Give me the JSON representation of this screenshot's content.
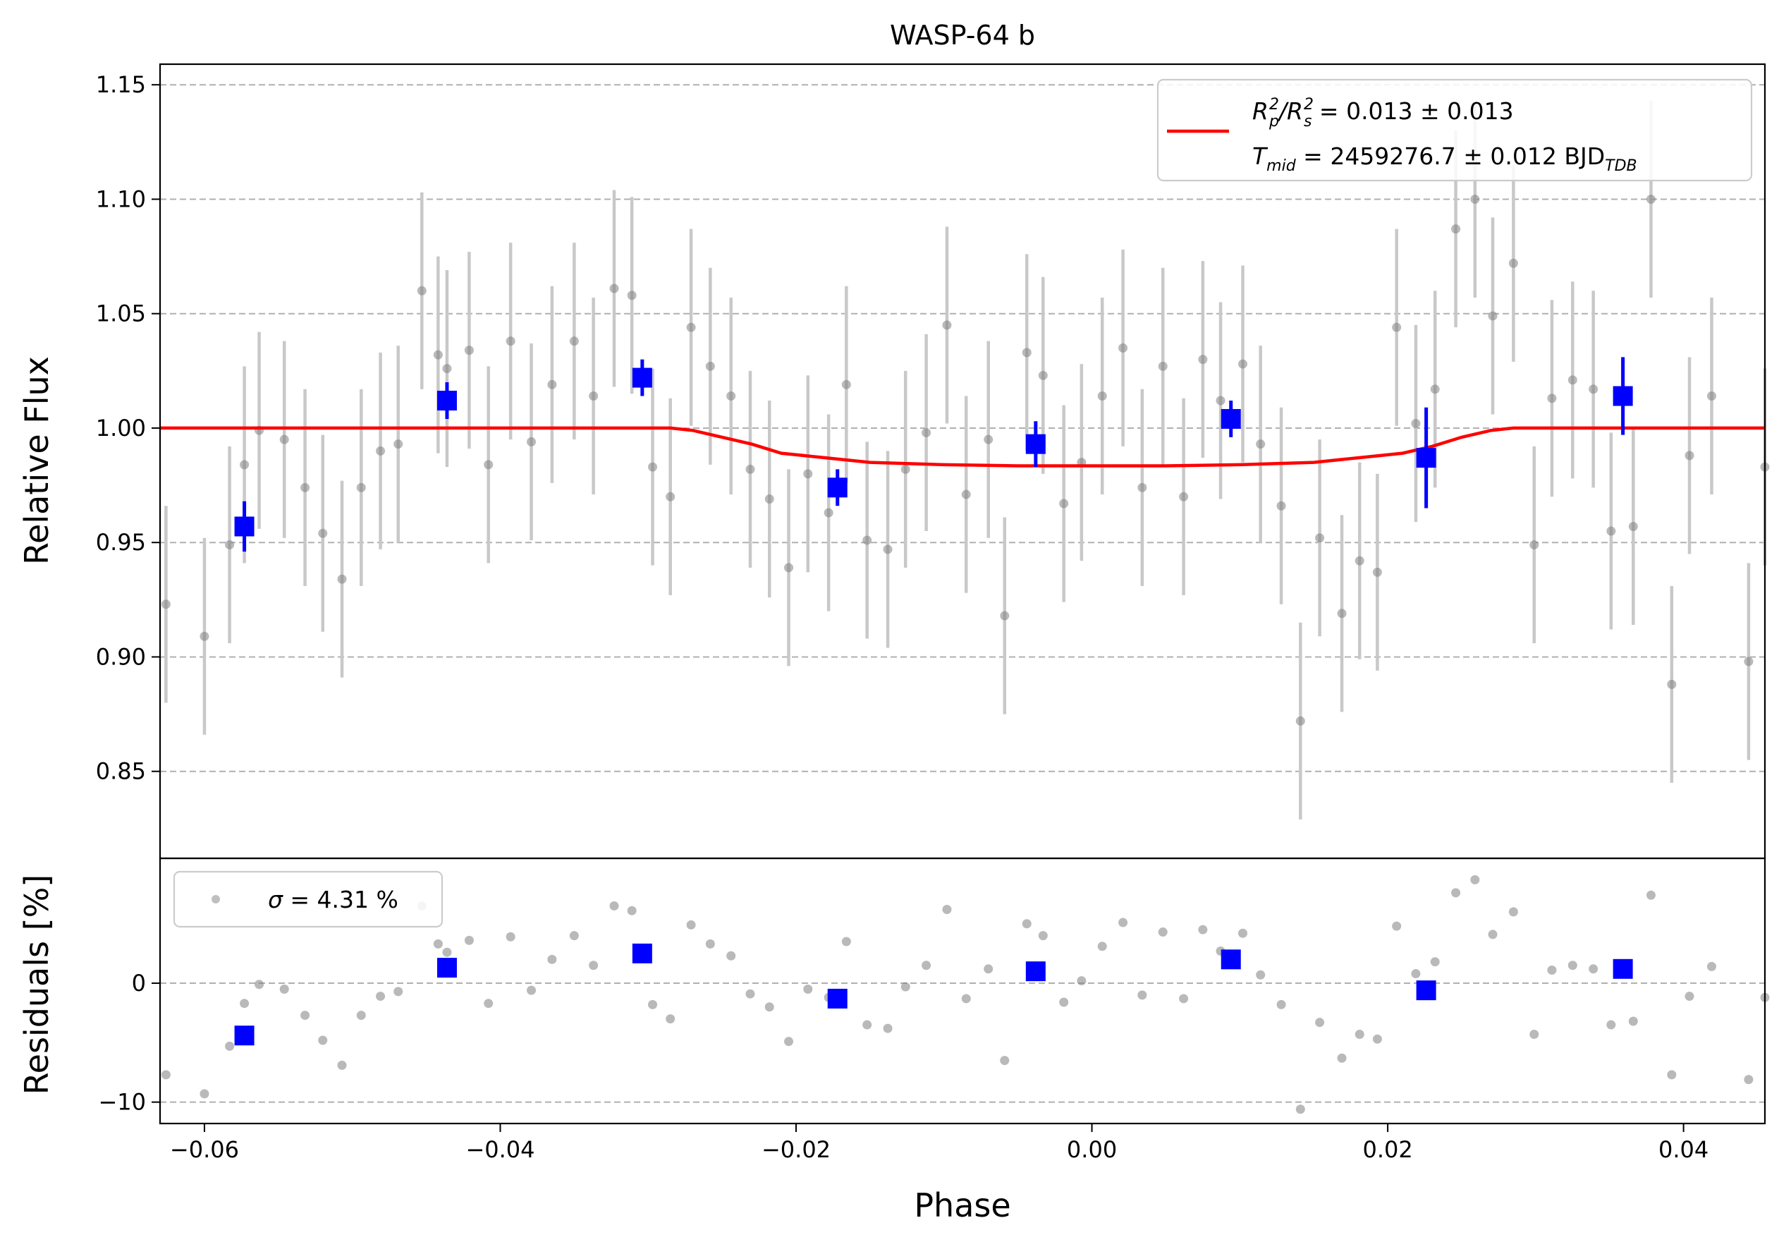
{
  "chart_data": [
    {
      "panel": "light-curve",
      "type": "scatter",
      "title": "WASP-64 b",
      "xlabel": "",
      "ylabel": "Relative Flux",
      "xlim": [
        -0.063,
        0.0455
      ],
      "ylim": [
        0.812,
        1.159
      ],
      "y_ticks": [
        0.85,
        0.9,
        0.95,
        1.0,
        1.05,
        1.1,
        1.15
      ],
      "y_tick_labels": [
        "0.85",
        "0.90",
        "0.95",
        "1.00",
        "1.05",
        "1.10",
        "1.15"
      ],
      "grid": "horizontal dashed",
      "legend_position": "upper right",
      "legend": {
        "rp_prefix": "R",
        "rp_sub": "p",
        "rp_sup": "2",
        "rs_prefix": "/R",
        "rs_sub": "s",
        "rs_sup": "2",
        "rp_value": " = 0.013 ± 0.013",
        "tmid_prefix": "T",
        "tmid_sub": "mid",
        "tmid_value": " = 2459276.7 ± 0.012 BJD",
        "tmid_unit_sub": "TDB"
      },
      "colors": {
        "raw": "#808080",
        "raw_err": "#c8c8c8",
        "binned": "#0000ff",
        "model": "#ff0000",
        "grid": "#b0b0b0"
      },
      "series": [
        {
          "name": "raw",
          "x": [
            -0.0626,
            -0.06,
            -0.0583,
            -0.0573,
            -0.0563,
            -0.0546,
            -0.0532,
            -0.052,
            -0.0507,
            -0.0494,
            -0.0481,
            -0.0469,
            -0.0453,
            -0.0442,
            -0.0436,
            -0.0421,
            -0.0408,
            -0.0393,
            -0.0379,
            -0.0365,
            -0.035,
            -0.0337,
            -0.0323,
            -0.0311,
            -0.0297,
            -0.0285,
            -0.0271,
            -0.0258,
            -0.0244,
            -0.0231,
            -0.0218,
            -0.0205,
            -0.0192,
            -0.0178,
            -0.0166,
            -0.0152,
            -0.0138,
            -0.0126,
            -0.0112,
            -0.0098,
            -0.0085,
            -0.007,
            -0.0059,
            -0.0044,
            -0.0033,
            -0.0019,
            -0.0007,
            0.0007,
            0.0021,
            0.0034,
            0.0048,
            0.0062,
            0.0075,
            0.0087,
            0.0102,
            0.0114,
            0.0128,
            0.0141,
            0.0154,
            0.0169,
            0.0181,
            0.0193,
            0.0206,
            0.0219,
            0.0232,
            0.0246,
            0.0259,
            0.0271,
            0.0285,
            0.0299,
            0.0311,
            0.0325,
            0.0339,
            0.0351,
            0.0366,
            0.0378,
            0.0392,
            0.0404,
            0.0419,
            0.0444,
            0.0455
          ],
          "y": [
            0.923,
            0.909,
            0.949,
            0.984,
            0.999,
            0.995,
            0.974,
            0.954,
            0.934,
            0.974,
            0.99,
            0.993,
            1.06,
            1.032,
            1.026,
            1.034,
            0.984,
            1.038,
            0.994,
            1.019,
            1.038,
            1.014,
            1.061,
            1.058,
            0.983,
            0.97,
            1.044,
            1.027,
            1.014,
            0.982,
            0.969,
            0.939,
            0.98,
            0.963,
            1.019,
            0.951,
            0.947,
            0.982,
            0.998,
            1.045,
            0.971,
            0.995,
            0.918,
            1.033,
            1.023,
            0.967,
            0.985,
            1.014,
            1.035,
            0.974,
            1.027,
            0.97,
            1.03,
            1.012,
            1.028,
            0.993,
            0.966,
            0.872,
            0.952,
            0.919,
            0.942,
            0.937,
            1.044,
            1.002,
            1.017,
            1.087,
            1.1,
            1.049,
            1.072,
            0.949,
            1.013,
            1.021,
            1.017,
            0.955,
            0.957,
            1.1,
            0.888,
            0.988,
            1.014,
            0.898,
            0.983
          ],
          "err": [
            0.043,
            0.043,
            0.043,
            0.043,
            0.043,
            0.043,
            0.043,
            0.043,
            0.043,
            0.043,
            0.043,
            0.043,
            0.043,
            0.043,
            0.043,
            0.043,
            0.043,
            0.043,
            0.043,
            0.043,
            0.043,
            0.043,
            0.043,
            0.043,
            0.043,
            0.043,
            0.043,
            0.043,
            0.043,
            0.043,
            0.043,
            0.043,
            0.043,
            0.043,
            0.043,
            0.043,
            0.043,
            0.043,
            0.043,
            0.043,
            0.043,
            0.043,
            0.043,
            0.043,
            0.043,
            0.043,
            0.043,
            0.043,
            0.043,
            0.043,
            0.043,
            0.043,
            0.043,
            0.043,
            0.043,
            0.043,
            0.043,
            0.043,
            0.043,
            0.043,
            0.043,
            0.043,
            0.043,
            0.043,
            0.043,
            0.043,
            0.043,
            0.043,
            0.043,
            0.043,
            0.043,
            0.043,
            0.043,
            0.043,
            0.043,
            0.043,
            0.043,
            0.043,
            0.043,
            0.043,
            0.043
          ]
        },
        {
          "name": "binned",
          "x": [
            -0.0573,
            -0.0436,
            -0.0304,
            -0.0172,
            -0.0038,
            0.0094,
            0.0226,
            0.0359
          ],
          "y": [
            0.957,
            1.012,
            1.022,
            0.974,
            0.993,
            1.004,
            0.987,
            1.014
          ],
          "err": [
            0.011,
            0.008,
            0.008,
            0.008,
            0.01,
            0.008,
            0.022,
            0.017
          ]
        },
        {
          "name": "model",
          "x": [
            -0.063,
            -0.0285,
            -0.027,
            -0.025,
            -0.023,
            -0.021,
            -0.018,
            -0.015,
            -0.01,
            -0.005,
            0.0,
            0.005,
            0.01,
            0.015,
            0.018,
            0.021,
            0.023,
            0.025,
            0.027,
            0.0285,
            0.0455
          ],
          "y": [
            1.0,
            1.0,
            0.999,
            0.996,
            0.993,
            0.989,
            0.987,
            0.985,
            0.984,
            0.9835,
            0.9835,
            0.9835,
            0.984,
            0.985,
            0.987,
            0.989,
            0.992,
            0.996,
            0.999,
            1.0,
            1.0
          ]
        }
      ]
    },
    {
      "panel": "residuals",
      "type": "scatter",
      "xlabel": "Phase",
      "ylabel": "Residuals [%]",
      "xlim": [
        -0.063,
        0.0455
      ],
      "ylim": [
        -11.8,
        10.5
      ],
      "x_ticks": [
        -0.06,
        -0.04,
        -0.02,
        0.0,
        0.02,
        0.04
      ],
      "x_tick_labels": [
        "−0.06",
        "−0.04",
        "−0.02",
        "0.00",
        "0.02",
        "0.04"
      ],
      "y_ticks": [
        -10,
        0
      ],
      "y_tick_labels": [
        "−10",
        "0"
      ],
      "legend_position": "upper left",
      "legend": {
        "sigma_symbol": "σ",
        "sigma_text": " = 4.31 %"
      },
      "series": [
        {
          "name": "raw",
          "x": [
            -0.0626,
            -0.06,
            -0.0583,
            -0.0573,
            -0.0563,
            -0.0546,
            -0.0532,
            -0.052,
            -0.0507,
            -0.0494,
            -0.0481,
            -0.0469,
            -0.0453,
            -0.0442,
            -0.0436,
            -0.0421,
            -0.0408,
            -0.0393,
            -0.0379,
            -0.0365,
            -0.035,
            -0.0337,
            -0.0323,
            -0.0311,
            -0.0297,
            -0.0285,
            -0.0271,
            -0.0258,
            -0.0244,
            -0.0231,
            -0.0218,
            -0.0205,
            -0.0192,
            -0.0178,
            -0.0166,
            -0.0152,
            -0.0138,
            -0.0126,
            -0.0112,
            -0.0098,
            -0.0085,
            -0.007,
            -0.0059,
            -0.0044,
            -0.0033,
            -0.0019,
            -0.0007,
            0.0007,
            0.0021,
            0.0034,
            0.0048,
            0.0062,
            0.0075,
            0.0087,
            0.0102,
            0.0114,
            0.0128,
            0.0141,
            0.0154,
            0.0169,
            0.0181,
            0.0193,
            0.0206,
            0.0219,
            0.0232,
            0.0246,
            0.0259,
            0.0271,
            0.0285,
            0.0299,
            0.0311,
            0.0325,
            0.0339,
            0.0351,
            0.0366,
            0.0378,
            0.0392,
            0.0404,
            0.0419,
            0.0444,
            0.0455
          ],
          "y": [
            -7.7,
            -9.3,
            -5.3,
            -1.7,
            -0.1,
            -0.5,
            -2.7,
            -4.8,
            -6.9,
            -2.7,
            -1.1,
            -0.7,
            6.5,
            3.3,
            2.6,
            3.6,
            -1.7,
            3.9,
            -0.6,
            2.0,
            4.0,
            1.5,
            6.5,
            6.1,
            -1.8,
            -3.0,
            4.9,
            3.3,
            2.3,
            -0.9,
            -2.0,
            -4.9,
            -0.5,
            -1.2,
            3.5,
            -3.5,
            -3.8,
            -0.3,
            1.5,
            6.2,
            -1.3,
            1.2,
            -6.5,
            5.0,
            4.0,
            -1.6,
            0.2,
            3.1,
            5.1,
            -1.0,
            4.3,
            -1.3,
            4.5,
            2.7,
            4.2,
            0.7,
            -1.8,
            -10.6,
            -3.3,
            -6.3,
            -4.3,
            -4.7,
            4.8,
            0.8,
            1.8,
            7.6,
            8.7,
            4.1,
            6.0,
            -4.3,
            1.1,
            1.5,
            1.2,
            -3.5,
            -3.2,
            7.4,
            -7.7,
            -1.1,
            1.4,
            -8.1,
            -1.2
          ]
        },
        {
          "name": "binned",
          "x": [
            -0.0573,
            -0.0436,
            -0.0304,
            -0.0172,
            -0.0038,
            0.0094,
            0.0226,
            0.0359
          ],
          "y": [
            -4.4,
            1.3,
            2.5,
            -1.3,
            1.0,
            2.0,
            -0.6,
            1.2
          ]
        }
      ]
    }
  ]
}
